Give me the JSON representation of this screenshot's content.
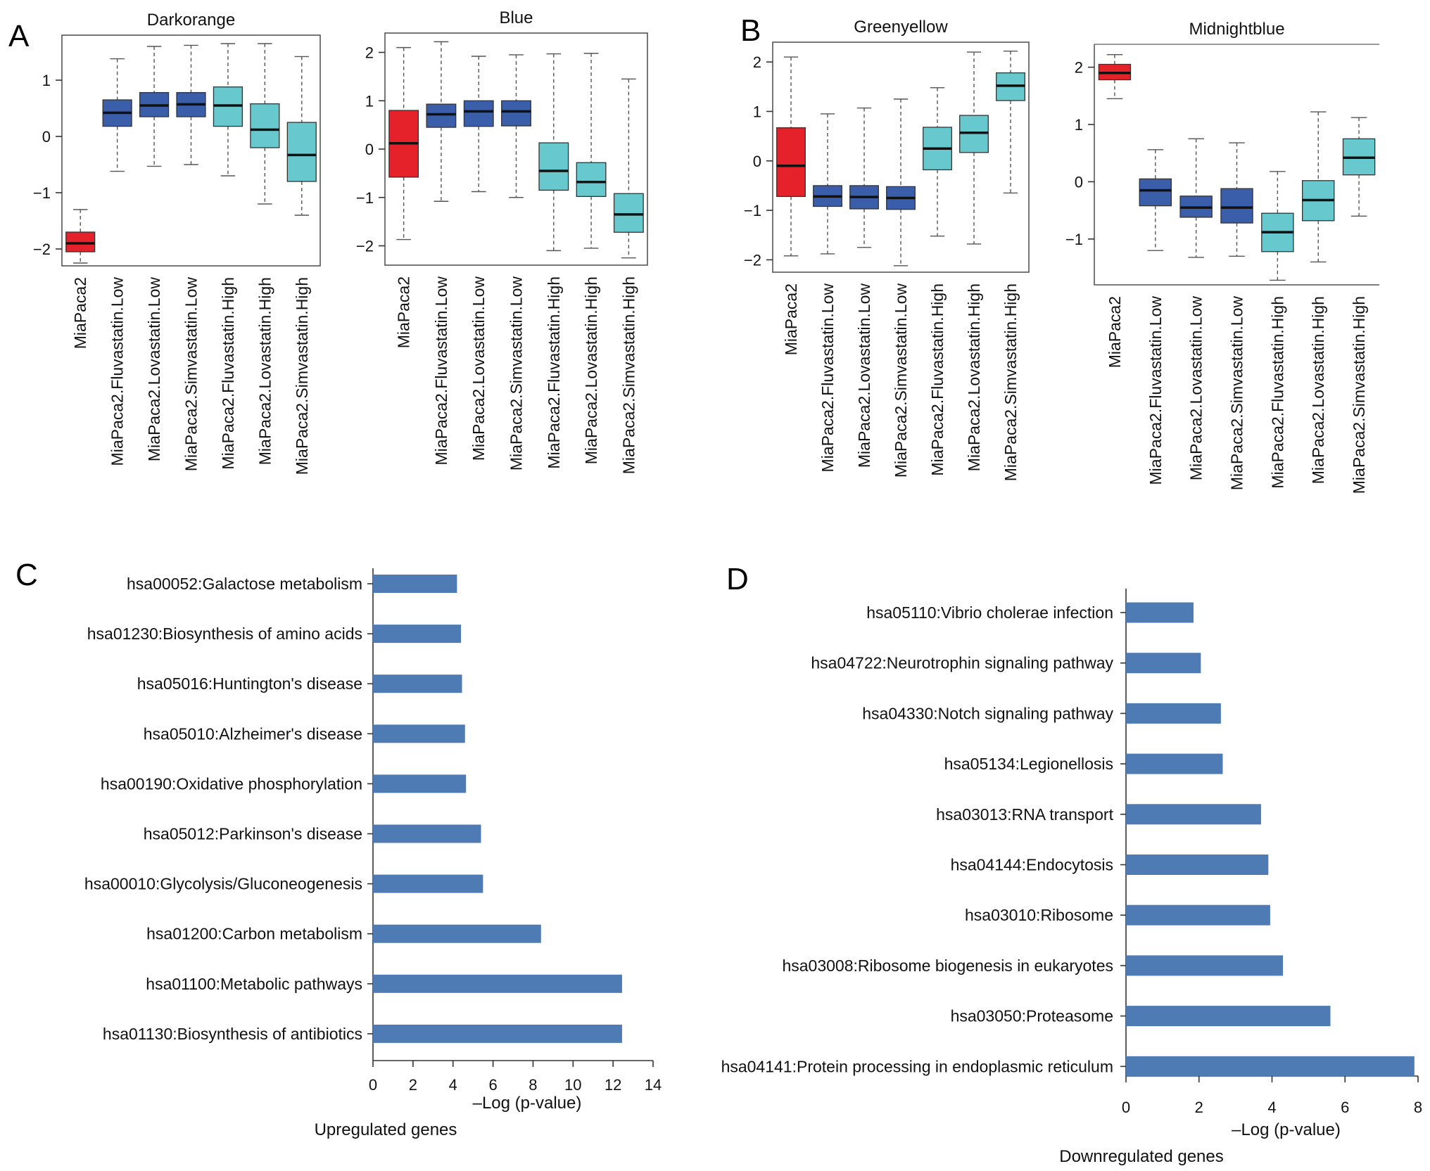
{
  "panels": {
    "A": "A",
    "B": "B",
    "C": "C",
    "D": "D"
  },
  "colors": {
    "red": "#e5222a",
    "darkblue": "#3a5ea9",
    "cyan": "#67c8cd",
    "bar": "#4f7bb4",
    "highlight": "#3858b4"
  },
  "chart_data": [
    {
      "id": "darkorange",
      "panel": "A",
      "type": "box",
      "title": "Darkorange",
      "ylim": [
        -2.3,
        1.8
      ],
      "yticks": [
        -2,
        -1,
        0,
        1
      ],
      "categories": [
        "MiaPaca2",
        "MiaPaca2.Fluvastatin.Low",
        "MiaPaca2.Lovastatin.Low",
        "MiaPaca2.Simvastatin.Low",
        "MiaPaca2.Fluvastatin.High",
        "MiaPaca2.Lovastatin.High",
        "MiaPaca2.Simvastatin.High"
      ],
      "boxes": [
        {
          "min": -2.25,
          "q1": -2.05,
          "median": -1.9,
          "q3": -1.7,
          "max": -1.3,
          "color": "red"
        },
        {
          "min": -0.62,
          "q1": 0.18,
          "median": 0.42,
          "q3": 0.65,
          "max": 1.38,
          "color": "darkblue"
        },
        {
          "min": -0.53,
          "q1": 0.35,
          "median": 0.55,
          "q3": 0.78,
          "max": 1.6,
          "color": "darkblue"
        },
        {
          "min": -0.5,
          "q1": 0.35,
          "median": 0.57,
          "q3": 0.78,
          "max": 1.62,
          "color": "darkblue"
        },
        {
          "min": -0.7,
          "q1": 0.18,
          "median": 0.55,
          "q3": 0.88,
          "max": 1.65,
          "color": "cyan"
        },
        {
          "min": -1.2,
          "q1": -0.2,
          "median": 0.12,
          "q3": 0.58,
          "max": 1.65,
          "color": "cyan"
        },
        {
          "min": -1.4,
          "q1": -0.8,
          "median": -0.33,
          "q3": 0.25,
          "max": 1.42,
          "color": "cyan"
        }
      ]
    },
    {
      "id": "blue",
      "panel": "A",
      "type": "box",
      "title": "Blue",
      "ylim": [
        -2.4,
        2.4
      ],
      "yticks": [
        -2,
        -1,
        0,
        1,
        2
      ],
      "categories": [
        "MiaPaca2",
        "MiaPaca2.Fluvastatin.Low",
        "MiaPaca2.Lovastatin.Low",
        "MiaPaca2.Simvastatin.Low",
        "MiaPaca2.Fluvastatin.High",
        "MiaPaca2.Lovastatin.High",
        "MiaPaca2.Simvastatin.High"
      ],
      "boxes": [
        {
          "min": -1.87,
          "q1": -0.58,
          "median": 0.12,
          "q3": 0.8,
          "max": 2.1,
          "color": "red"
        },
        {
          "min": -1.08,
          "q1": 0.45,
          "median": 0.72,
          "q3": 0.93,
          "max": 2.22,
          "color": "darkblue"
        },
        {
          "min": -0.88,
          "q1": 0.47,
          "median": 0.78,
          "q3": 1.0,
          "max": 1.92,
          "color": "darkblue"
        },
        {
          "min": -1.0,
          "q1": 0.48,
          "median": 0.78,
          "q3": 1.0,
          "max": 1.95,
          "color": "darkblue"
        },
        {
          "min": -2.1,
          "q1": -0.85,
          "median": -0.45,
          "q3": 0.13,
          "max": 1.97,
          "color": "cyan"
        },
        {
          "min": -2.05,
          "q1": -0.98,
          "median": -0.68,
          "q3": -0.28,
          "max": 1.98,
          "color": "cyan"
        },
        {
          "min": -2.25,
          "q1": -1.72,
          "median": -1.35,
          "q3": -0.92,
          "max": 1.45,
          "color": "cyan"
        }
      ]
    },
    {
      "id": "greenyellow",
      "panel": "B",
      "type": "box",
      "title": "Greenyellow",
      "ylim": [
        -2.25,
        2.4
      ],
      "yticks": [
        -2,
        -1,
        0,
        1,
        2
      ],
      "categories": [
        "MiaPaca2",
        "MiaPaca2.Fluvastatin.Low",
        "MiaPaca2.Lovastatin.Low",
        "MiaPaca2.Simvastatin.Low",
        "MiaPaca2.Fluvastatin.High",
        "MiaPaca2.Lovastatin.High",
        "MiaPaca2.Simvastatin.High"
      ],
      "boxes": [
        {
          "min": -1.92,
          "q1": -0.72,
          "median": -0.1,
          "q3": 0.67,
          "max": 2.1,
          "color": "red"
        },
        {
          "min": -1.88,
          "q1": -0.92,
          "median": -0.72,
          "q3": -0.5,
          "max": 0.95,
          "color": "darkblue"
        },
        {
          "min": -1.75,
          "q1": -0.97,
          "median": -0.73,
          "q3": -0.5,
          "max": 1.07,
          "color": "darkblue"
        },
        {
          "min": -2.12,
          "q1": -0.98,
          "median": -0.75,
          "q3": -0.52,
          "max": 1.25,
          "color": "darkblue"
        },
        {
          "min": -1.52,
          "q1": -0.18,
          "median": 0.25,
          "q3": 0.68,
          "max": 1.48,
          "color": "cyan"
        },
        {
          "min": -1.68,
          "q1": 0.17,
          "median": 0.57,
          "q3": 0.92,
          "max": 2.2,
          "color": "cyan"
        },
        {
          "min": -0.65,
          "q1": 1.22,
          "median": 1.52,
          "q3": 1.78,
          "max": 2.22,
          "color": "cyan"
        }
      ]
    },
    {
      "id": "midnightblue",
      "panel": "B",
      "type": "box",
      "title": "Midnightblue",
      "ylim": [
        -1.8,
        2.4
      ],
      "yticks": [
        -1,
        0,
        1,
        2
      ],
      "categories": [
        "MiaPaca2",
        "MiaPaca2.Fluvastatin.Low",
        "MiaPaca2.Lovastatin.Low",
        "MiaPaca2.Simvastatin.Low",
        "MiaPaca2.Fluvastatin.High",
        "MiaPaca2.Lovastatin.High",
        "MiaPaca2.Simvastatin.High"
      ],
      "boxes": [
        {
          "min": 1.45,
          "q1": 1.78,
          "median": 1.9,
          "q3": 2.05,
          "max": 2.22,
          "color": "red"
        },
        {
          "min": -1.2,
          "q1": -0.42,
          "median": -0.15,
          "q3": 0.05,
          "max": 0.56,
          "color": "darkblue"
        },
        {
          "min": -1.32,
          "q1": -0.62,
          "median": -0.45,
          "q3": -0.25,
          "max": 0.75,
          "color": "darkblue"
        },
        {
          "min": -1.3,
          "q1": -0.72,
          "median": -0.45,
          "q3": -0.12,
          "max": 0.68,
          "color": "darkblue"
        },
        {
          "min": -1.72,
          "q1": -1.22,
          "median": -0.88,
          "q3": -0.55,
          "max": 0.18,
          "color": "cyan"
        },
        {
          "min": -1.4,
          "q1": -0.68,
          "median": -0.32,
          "q3": 0.02,
          "max": 1.22,
          "color": "cyan"
        },
        {
          "min": -0.6,
          "q1": 0.12,
          "median": 0.42,
          "q3": 0.75,
          "max": 1.12,
          "color": "cyan"
        }
      ]
    },
    {
      "id": "upregulated",
      "panel": "C",
      "type": "bar",
      "orientation": "horizontal",
      "categories": [
        "hsa00052:Galactose metabolism",
        "hsa01230:Biosynthesis of amino acids",
        "hsa05016:Huntington's disease",
        "hsa05010:Alzheimer's disease",
        "hsa00190:Oxidative phosphorylation",
        "hsa05012:Parkinson's disease",
        "hsa00010:Glycolysis/Gluconeogenesis",
        "hsa01200:Carbon metabolism",
        "hsa01100:Metabolic pathways",
        "hsa01130:Biosynthesis of antibiotics"
      ],
      "values": [
        4.2,
        4.4,
        4.45,
        4.6,
        4.65,
        5.4,
        5.5,
        8.4,
        12.45,
        12.45
      ],
      "highlight_index": 8,
      "xlim": [
        0,
        14
      ],
      "xticks": [
        0,
        2,
        4,
        6,
        8,
        10,
        12,
        14
      ],
      "xlabel": "–Log (p-value)",
      "caption": "Upregulated genes"
    },
    {
      "id": "downregulated",
      "panel": "D",
      "type": "bar",
      "orientation": "horizontal",
      "categories": [
        "hsa05110:Vibrio cholerae infection",
        "hsa04722:Neurotrophin signaling pathway",
        "hsa04330:Notch signaling pathway",
        "hsa05134:Legionellosis",
        "hsa03013:RNA transport",
        "hsa04144:Endocytosis",
        "hsa03010:Ribosome",
        "hsa03008:Ribosome biogenesis in eukaryotes",
        "hsa03050:Proteasome",
        "hsa04141:Protein processing in endoplasmic reticulum"
      ],
      "values": [
        1.85,
        2.05,
        2.6,
        2.65,
        3.7,
        3.9,
        3.95,
        4.3,
        5.6,
        7.9
      ],
      "highlight_index": -1,
      "xlim": [
        0,
        8
      ],
      "xticks": [
        0,
        2,
        4,
        6,
        8
      ],
      "xlabel": "–Log (p-value)",
      "caption": "Downregulated genes"
    }
  ]
}
